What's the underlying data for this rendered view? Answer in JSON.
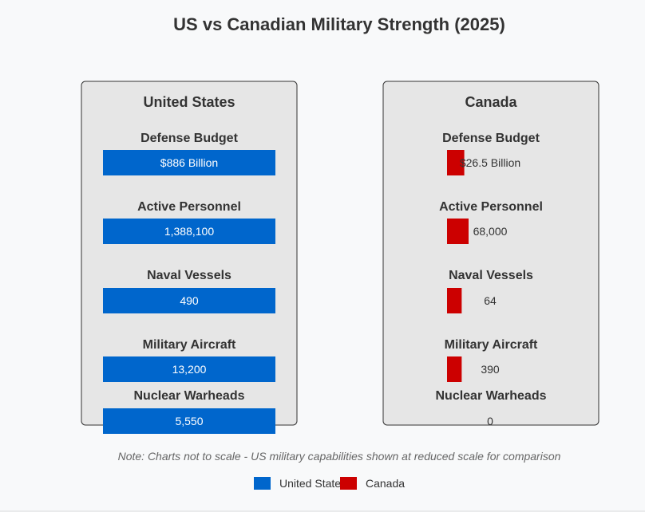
{
  "chart_data": {
    "type": "bar",
    "title": "US vs Canadian Military Strength (2025)",
    "note": "Note: Charts not to scale - US military capabilities shown at reduced scale for comparison",
    "colors": {
      "us": "#0066cc",
      "canada": "#cc0000"
    },
    "legend": [
      {
        "key": "us",
        "label": "United States"
      },
      {
        "key": "canada",
        "label": "Canada"
      }
    ],
    "panels": [
      {
        "key": "us",
        "name": "United States",
        "metrics": [
          {
            "label": "Defense Budget",
            "value": 886,
            "display": "$886 Billion"
          },
          {
            "label": "Active Personnel",
            "value": 1388100,
            "display": "1,388,100"
          },
          {
            "label": "Naval Vessels",
            "value": 490,
            "display": "490"
          },
          {
            "label": "Military Aircraft",
            "value": 13200,
            "display": "13,200"
          },
          {
            "label": "Nuclear Warheads",
            "value": 5550,
            "display": "5,550"
          }
        ]
      },
      {
        "key": "canada",
        "name": "Canada",
        "metrics": [
          {
            "label": "Defense Budget",
            "value": 26.5,
            "display": "$26.5 Billion"
          },
          {
            "label": "Active Personnel",
            "value": 68000,
            "display": "68,000"
          },
          {
            "label": "Naval Vessels",
            "value": 64,
            "display": "64"
          },
          {
            "label": "Military Aircraft",
            "value": 390,
            "display": "390"
          },
          {
            "label": "Nuclear Warheads",
            "value": 0,
            "display": "0"
          }
        ]
      }
    ]
  }
}
